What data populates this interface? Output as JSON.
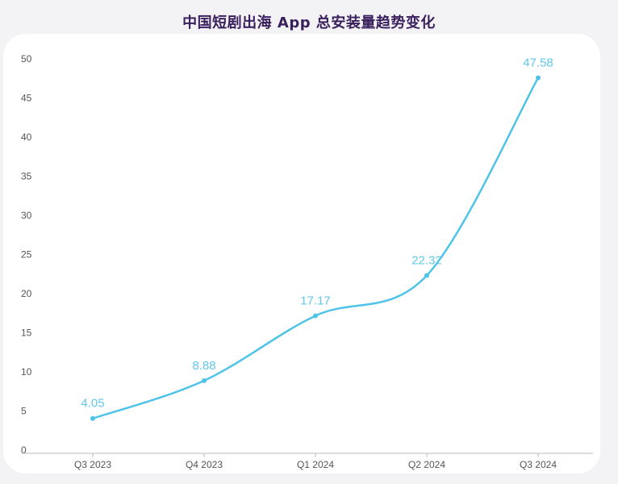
{
  "chart_data": {
    "type": "line",
    "title": "中国短剧出海 App 总安装量趋势变化",
    "xlabel": "",
    "ylabel": "",
    "categories": [
      "Q3 2023",
      "Q4 2023",
      "Q1 2024",
      "Q2 2024",
      "Q3 2024"
    ],
    "series": [
      {
        "values": [
          4.05,
          8.88,
          17.17,
          22.32,
          47.58
        ],
        "data_labels": [
          "4.05",
          "8.88",
          "17.17",
          "22.32",
          "47.58"
        ]
      }
    ],
    "ylim": [
      0,
      50
    ],
    "yticks": [
      "0",
      "5",
      "10",
      "15",
      "20",
      "25",
      "30",
      "35",
      "40",
      "45",
      "50"
    ],
    "grid": false,
    "legend": "none",
    "colors": {
      "line": "#4fc3e8",
      "data_label": "#5fc8ec",
      "title": "#3a1f5d",
      "axis": "#bbbbbb",
      "tick_text": "#555555"
    }
  }
}
